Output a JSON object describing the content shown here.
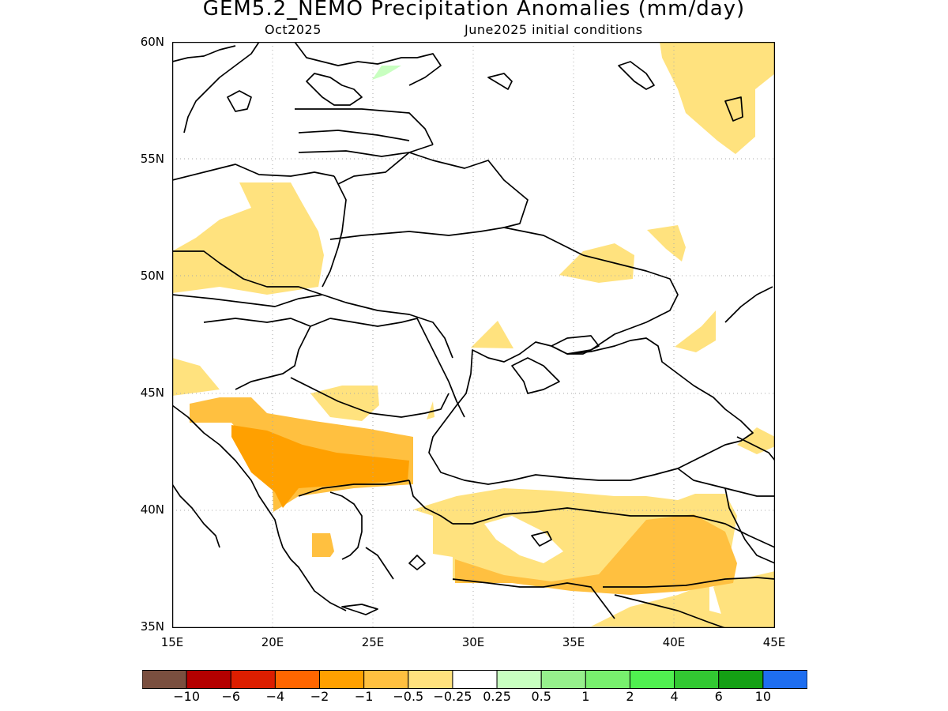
{
  "title": "GEM5.2_NEMO Precipitation Anomalies (mm/day)",
  "subtitle_left": "Oct2025",
  "subtitle_right": "June2025 initial conditions",
  "lat_labels": [
    "60N",
    "55N",
    "50N",
    "45N",
    "40N",
    "35N"
  ],
  "lon_labels": [
    "15E",
    "20E",
    "25E",
    "30E",
    "35E",
    "40E",
    "45E"
  ],
  "colorbar": {
    "colors": [
      "#7a4f3f",
      "#b40000",
      "#dc1e00",
      "#ff6600",
      "#ffa000",
      "#ffc040",
      "#ffe27e",
      "#ffffff",
      "#c8ffc0",
      "#96f08c",
      "#78f06e",
      "#50f050",
      "#32c832",
      "#14a014",
      "#1e6ef0"
    ],
    "labels": [
      "−10",
      "−6",
      "−4",
      "−2",
      "−1",
      "−0.5",
      "−0.25",
      "0.25",
      "0.5",
      "1",
      "2",
      "4",
      "6",
      "10"
    ]
  },
  "map": {
    "lon_range": [
      15,
      45
    ],
    "lat_range": [
      35,
      60
    ],
    "grid": "dotted",
    "anomaly_fill_colors": {
      "light": "#ffe27e",
      "medium": "#ffc040",
      "dark": "#ffa000",
      "green": "#c8ffc0"
    }
  }
}
